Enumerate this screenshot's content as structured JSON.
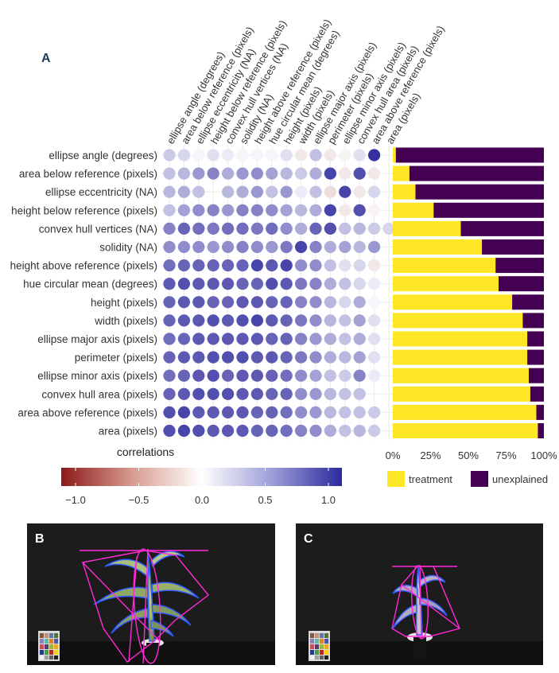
{
  "panels": {
    "a": "A",
    "b": "B",
    "c": "C"
  },
  "chart_data": [
    {
      "type": "heatmap",
      "title": "",
      "legend_title": "correlations",
      "color_scale": {
        "low": -1.0,
        "mid": 0.0,
        "high": 1.0,
        "low_color": "#8b1a1a",
        "mid_color": "#ffffff",
        "high_color": "#2b2b9e"
      },
      "colorbar_ticks": [
        "−1.0",
        "−0.5",
        "0.0",
        "0.5",
        "1.0"
      ],
      "colorbar_tick_values": [
        -1.0,
        -0.5,
        0.0,
        0.5,
        1.0
      ],
      "columns": [
        "ellipse angle (degrees)",
        "area below reference (pixels)",
        "ellipse eccentricity (NA)",
        "height below reference (pixels)",
        "convex hull vertices (NA)",
        "solidity (NA)",
        "height above reference (pixels)",
        "hue circular mean (degrees)",
        "height (pixels)",
        "width (pixels)",
        "ellipse major axis (pixels)",
        "perimeter (pixels)",
        "ellipse minor axis (pixels)",
        "convex hull area (pixels)",
        "area above reference (pixels)",
        "area (pixels)"
      ],
      "rows": [
        "ellipse angle (degrees)",
        "area below reference (pixels)",
        "ellipse eccentricity (NA)",
        "height below reference (pixels)",
        "convex hull vertices (NA)",
        "solidity (NA)",
        "height above reference (pixels)",
        "hue circular mean (degrees)",
        "height (pixels)",
        "width (pixels)",
        "ellipse major axis (pixels)",
        "perimeter (pixels)",
        "ellipse minor axis (pixels)",
        "convex hull area (pixels)",
        "area above reference (pixels)",
        "area (pixels)"
      ],
      "values": [
        [
          0.25,
          0.2,
          0.05,
          0.15,
          0.1,
          0.05,
          0.05,
          0.05,
          0.15,
          -0.1,
          0.3,
          -0.1,
          -0.05,
          0.15,
          1.0,
          0.0
        ],
        [
          0.3,
          0.35,
          0.5,
          0.6,
          0.4,
          0.5,
          0.55,
          0.45,
          0.35,
          0.25,
          0.4,
          0.9,
          -0.1,
          0.85,
          -0.1,
          0.0
        ],
        [
          0.35,
          0.4,
          0.3,
          0.0,
          0.35,
          0.4,
          0.5,
          0.3,
          0.5,
          0.1,
          0.3,
          -0.15,
          0.9,
          -0.1,
          0.2,
          0.0
        ],
        [
          0.3,
          0.45,
          0.55,
          0.6,
          0.5,
          0.6,
          0.6,
          0.55,
          0.45,
          0.35,
          0.4,
          0.9,
          -0.1,
          0.85,
          -0.05,
          0.0
        ],
        [
          0.6,
          0.75,
          0.7,
          0.65,
          0.7,
          0.7,
          0.65,
          0.7,
          0.55,
          0.4,
          0.75,
          0.85,
          0.3,
          0.35,
          0.25,
          0.2
        ],
        [
          0.55,
          0.55,
          0.55,
          0.5,
          0.55,
          0.6,
          0.55,
          0.5,
          0.65,
          0.9,
          0.6,
          0.4,
          0.45,
          0.35,
          0.5,
          0.0
        ],
        [
          0.7,
          0.75,
          0.75,
          0.75,
          0.75,
          0.75,
          0.9,
          0.8,
          0.9,
          0.55,
          0.55,
          0.3,
          0.15,
          0.2,
          -0.1,
          0.0
        ],
        [
          0.8,
          0.85,
          0.8,
          0.8,
          0.8,
          0.75,
          0.75,
          0.85,
          0.8,
          0.65,
          0.6,
          0.4,
          0.3,
          0.2,
          0.1,
          0.0
        ],
        [
          0.75,
          0.8,
          0.8,
          0.75,
          0.75,
          0.8,
          0.8,
          0.75,
          0.75,
          0.6,
          0.55,
          0.35,
          0.2,
          0.4,
          0.05,
          0.0
        ],
        [
          0.75,
          0.8,
          0.8,
          0.85,
          0.8,
          0.85,
          0.9,
          0.8,
          0.75,
          0.65,
          0.55,
          0.35,
          0.3,
          0.45,
          0.15,
          0.0
        ],
        [
          0.7,
          0.75,
          0.8,
          0.8,
          0.8,
          0.8,
          0.8,
          0.75,
          0.75,
          0.6,
          0.5,
          0.4,
          0.3,
          0.4,
          0.15,
          0.0
        ],
        [
          0.75,
          0.8,
          0.8,
          0.85,
          0.85,
          0.85,
          0.8,
          0.8,
          0.75,
          0.65,
          0.55,
          0.4,
          0.35,
          0.45,
          0.15,
          0.0
        ],
        [
          0.7,
          0.75,
          0.8,
          0.85,
          0.75,
          0.8,
          0.8,
          0.75,
          0.7,
          0.55,
          0.45,
          0.3,
          0.25,
          0.6,
          0.1,
          0.0
        ],
        [
          0.75,
          0.8,
          0.85,
          0.85,
          0.85,
          0.8,
          0.8,
          0.75,
          0.75,
          0.55,
          0.5,
          0.35,
          0.3,
          0.3,
          0.0,
          0.0
        ],
        [
          0.85,
          0.9,
          0.8,
          0.8,
          0.8,
          0.8,
          0.75,
          0.75,
          0.7,
          0.55,
          0.5,
          0.35,
          0.3,
          0.3,
          0.25,
          0.0
        ],
        [
          0.85,
          0.9,
          0.85,
          0.8,
          0.8,
          0.8,
          0.75,
          0.75,
          0.7,
          0.6,
          0.55,
          0.4,
          0.3,
          0.35,
          0.25,
          0.0
        ]
      ]
    },
    {
      "type": "bar",
      "orientation": "horizontal",
      "stacked": true,
      "categories": [
        "ellipse angle (degrees)",
        "area below reference (pixels)",
        "ellipse eccentricity (NA)",
        "height below reference (pixels)",
        "convex hull vertices (NA)",
        "solidity (NA)",
        "height above reference (pixels)",
        "hue circular mean (degrees)",
        "height (pixels)",
        "width (pixels)",
        "ellipse major axis (pixels)",
        "perimeter (pixels)",
        "ellipse minor axis (pixels)",
        "convex hull area (pixels)",
        "area above reference (pixels)",
        "area (pixels)"
      ],
      "series": [
        {
          "name": "treatment",
          "color": "#fde725",
          "values": [
            2,
            11,
            15,
            27,
            45,
            59,
            68,
            70,
            79,
            86,
            89,
            89,
            90,
            91,
            95,
            96
          ]
        },
        {
          "name": "unexplained",
          "color": "#440154",
          "values": [
            98,
            89,
            85,
            73,
            55,
            41,
            32,
            30,
            21,
            14,
            11,
            11,
            10,
            9,
            5,
            4
          ]
        }
      ],
      "xlim": [
        0,
        100
      ],
      "x_ticks": [
        "0%",
        "25%",
        "50%",
        "75%",
        "100%"
      ],
      "x_tick_values": [
        0,
        25,
        50,
        75,
        100
      ],
      "legend": [
        "treatment",
        "unexplained"
      ],
      "legend_position": "bottom"
    }
  ],
  "photos": {
    "b_background": "#1c1c1c",
    "c_background": "#1c1c1c",
    "overlay_color": "#ff2bd6",
    "contour_color": "#2f5bff"
  }
}
